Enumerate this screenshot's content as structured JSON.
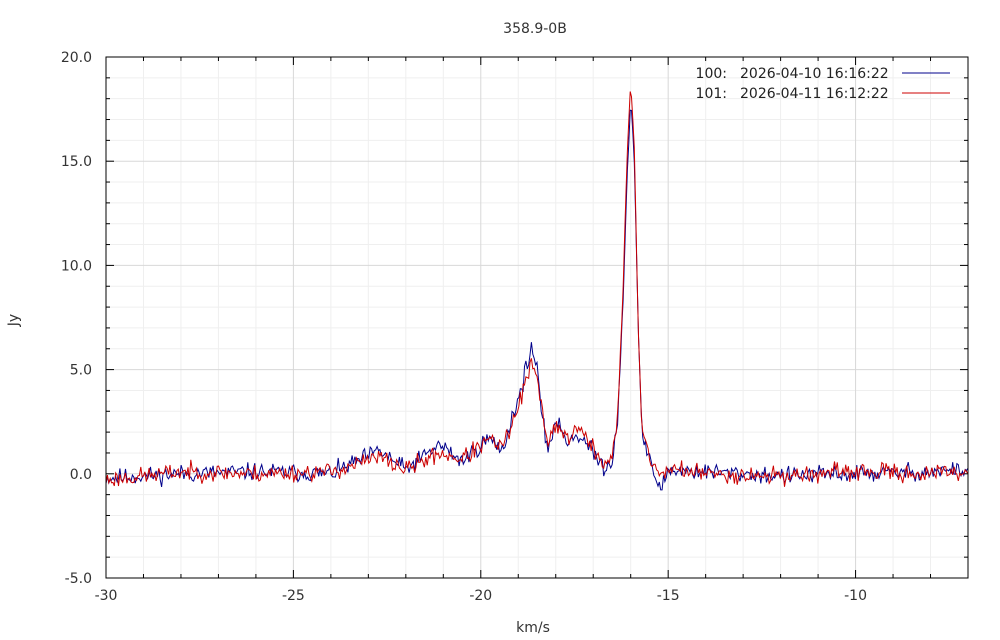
{
  "chart_data": {
    "type": "line",
    "title": "358.9-0B",
    "xlabel": "km/s",
    "ylabel": "Jy",
    "xlim": [
      -30,
      -7
    ],
    "ylim": [
      -5,
      20
    ],
    "xticks": [
      -30,
      -25,
      -20,
      -15,
      -10
    ],
    "xtick_labels": [
      "-30",
      "-25",
      "-20",
      "-15",
      "-10"
    ],
    "yticks": [
      -5,
      0,
      5,
      10,
      15,
      20
    ],
    "ytick_labels": [
      "-5.0",
      "0.0",
      "5.0",
      "10.0",
      "15.0",
      "20.0"
    ],
    "grid": true,
    "legend_position": "top-right",
    "series": [
      {
        "name": "100:",
        "date": "2026-04-10 16:16:22",
        "color": "#00008b",
        "noise_seed": 11,
        "points": [
          [
            -30.0,
            -0.2
          ],
          [
            -28.0,
            0.0
          ],
          [
            -26.0,
            0.1
          ],
          [
            -24.0,
            0.0
          ],
          [
            -22.7,
            1.1
          ],
          [
            -22.0,
            0.2
          ],
          [
            -21.1,
            1.4
          ],
          [
            -20.5,
            0.6
          ],
          [
            -19.8,
            1.7
          ],
          [
            -19.4,
            1.1
          ],
          [
            -19.2,
            2.6
          ],
          [
            -19.0,
            3.5
          ],
          [
            -18.8,
            5.0
          ],
          [
            -18.65,
            6.1
          ],
          [
            -18.5,
            5.0
          ],
          [
            -18.35,
            2.4
          ],
          [
            -18.2,
            1.2
          ],
          [
            -18.0,
            2.6
          ],
          [
            -17.7,
            1.6
          ],
          [
            -17.4,
            1.9
          ],
          [
            -17.0,
            1.0
          ],
          [
            -16.7,
            0.3
          ],
          [
            -16.5,
            0.6
          ],
          [
            -16.35,
            2.6
          ],
          [
            -16.2,
            8.5
          ],
          [
            -16.1,
            14.0
          ],
          [
            -16.0,
            18.0
          ],
          [
            -15.9,
            15.0
          ],
          [
            -15.8,
            7.0
          ],
          [
            -15.7,
            2.0
          ],
          [
            -15.5,
            0.6
          ],
          [
            -15.2,
            -0.8
          ],
          [
            -15.0,
            0.2
          ],
          [
            -14.0,
            0.1
          ],
          [
            -12.0,
            -0.1
          ],
          [
            -10.0,
            0.0
          ],
          [
            -8.0,
            0.1
          ],
          [
            -7.0,
            0.2
          ]
        ]
      },
      {
        "name": "101:",
        "date": "2026-04-11 16:12:22",
        "color": "#cc0000",
        "noise_seed": 23,
        "points": [
          [
            -30.0,
            -0.3
          ],
          [
            -28.0,
            0.1
          ],
          [
            -26.0,
            0.0
          ],
          [
            -24.0,
            0.1
          ],
          [
            -22.7,
            0.8
          ],
          [
            -22.0,
            0.2
          ],
          [
            -21.1,
            1.0
          ],
          [
            -20.5,
            0.7
          ],
          [
            -19.8,
            1.6
          ],
          [
            -19.4,
            1.3
          ],
          [
            -19.2,
            2.2
          ],
          [
            -19.0,
            3.2
          ],
          [
            -18.8,
            4.4
          ],
          [
            -18.65,
            5.2
          ],
          [
            -18.5,
            4.6
          ],
          [
            -18.35,
            2.8
          ],
          [
            -18.2,
            1.6
          ],
          [
            -18.0,
            2.4
          ],
          [
            -17.7,
            1.7
          ],
          [
            -17.4,
            2.2
          ],
          [
            -17.0,
            1.2
          ],
          [
            -16.7,
            0.5
          ],
          [
            -16.5,
            0.7
          ],
          [
            -16.35,
            2.6
          ],
          [
            -16.2,
            9.0
          ],
          [
            -16.1,
            15.0
          ],
          [
            -16.0,
            19.0
          ],
          [
            -15.9,
            15.5
          ],
          [
            -15.8,
            7.0
          ],
          [
            -15.7,
            2.2
          ],
          [
            -15.5,
            0.8
          ],
          [
            -15.2,
            -0.2
          ],
          [
            -15.0,
            0.3
          ],
          [
            -14.0,
            0.0
          ],
          [
            -12.0,
            -0.1
          ],
          [
            -10.0,
            0.1
          ],
          [
            -8.0,
            0.0
          ],
          [
            -7.0,
            0.1
          ]
        ]
      }
    ]
  }
}
